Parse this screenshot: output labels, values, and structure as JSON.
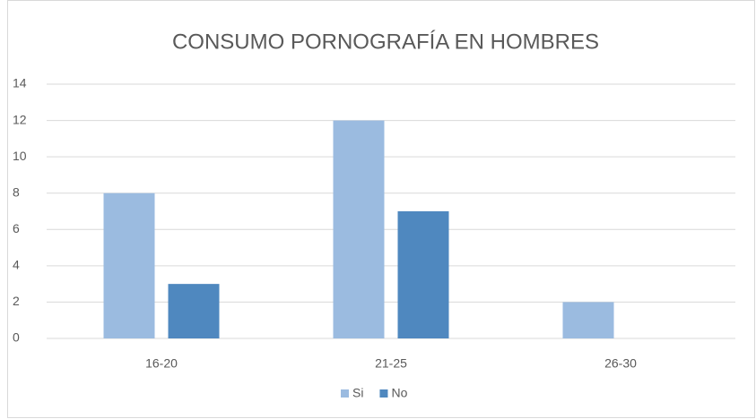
{
  "chart_data": {
    "type": "bar",
    "title": "CONSUMO PORNOGRAFÍA EN HOMBRES",
    "categories": [
      "16-20",
      "21-25",
      "26-30"
    ],
    "series": [
      {
        "name": "Si",
        "color": "#9bbbe0",
        "values": [
          8,
          12,
          2
        ]
      },
      {
        "name": "No",
        "color": "#4f88bf",
        "values": [
          3,
          7,
          0
        ]
      }
    ],
    "ylim": [
      0,
      14
    ],
    "yticks": [
      0,
      2,
      4,
      6,
      8,
      10,
      12,
      14
    ],
    "grid": true,
    "legend": "bottom"
  }
}
